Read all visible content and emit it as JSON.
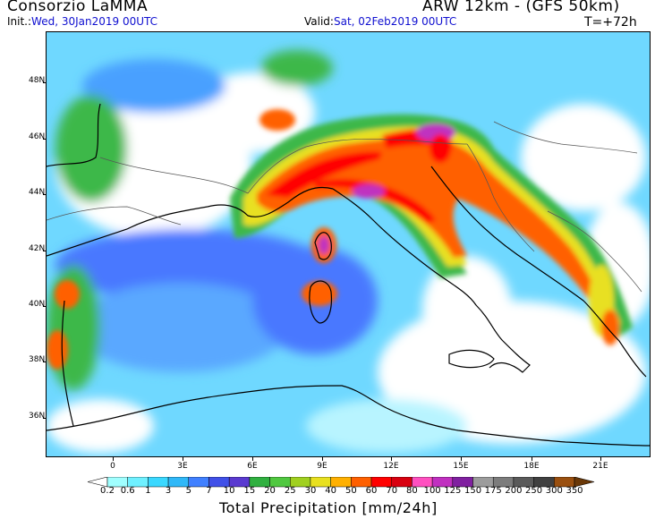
{
  "header": {
    "organization": "Consorzio LaMMA",
    "model": "ARW 12km - (GFS 50km)",
    "init_label": "Init.:",
    "init_value": "Wed, 30Jan2019 00UTC",
    "valid_label": "Valid:",
    "valid_value": "Sat, 02Feb2019 00UTC",
    "step": "T=+72h"
  },
  "map": {
    "lat_labels": [
      "48N",
      "46N",
      "44N",
      "42N",
      "40N",
      "38N",
      "36N"
    ],
    "lon_labels": [
      "0",
      "3E",
      "6E",
      "9E",
      "12E",
      "15E",
      "18E",
      "21E"
    ]
  },
  "colorbar": {
    "title": "Total Precipitation [mm/24h]",
    "labels": [
      "0.2",
      "0.6",
      "1",
      "3",
      "5",
      "7",
      "10",
      "15",
      "20",
      "25",
      "30",
      "40",
      "50",
      "60",
      "70",
      "80",
      "100",
      "125",
      "150",
      "175",
      "200",
      "250",
      "300",
      "350"
    ],
    "colors": [
      "#a0ffff",
      "#6ff0ff",
      "#3ad8ff",
      "#30b8f8",
      "#4080ff",
      "#4050e8",
      "#5a3ad0",
      "#30b040",
      "#50c840",
      "#a0d020",
      "#e8e020",
      "#ffb000",
      "#ff6000",
      "#ff0000",
      "#d80010",
      "#ff50c0",
      "#c030c0",
      "#8020a0",
      "#9c9c9c",
      "#7c7c7c",
      "#5a5a5a",
      "#404040",
      "#9a5010",
      "#6a3808"
    ]
  }
}
